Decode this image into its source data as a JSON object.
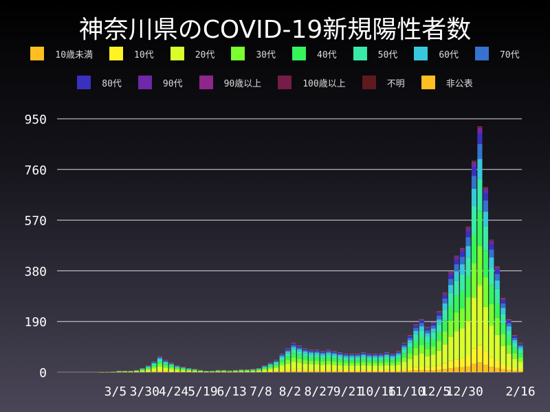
{
  "chart_data": {
    "type": "bar",
    "stacked": true,
    "title": "神奈川県のCOVID-19新規陽性者数",
    "xlabel": "",
    "ylabel": "",
    "ylim": [
      0,
      1000
    ],
    "yticks": [
      0,
      190,
      380,
      570,
      760,
      950
    ],
    "xtick_labels": [
      "3/5",
      "3/30",
      "4/24",
      "5/19",
      "6/13",
      "7/8",
      "8/2",
      "8/27",
      "9/21",
      "10/16",
      "11/10",
      "12/5",
      "12/30",
      "2/16"
    ],
    "xtick_dates": [
      "2020-03-05",
      "2020-03-30",
      "2020-04-24",
      "2020-05-19",
      "2020-06-13",
      "2020-07-08",
      "2020-08-02",
      "2020-08-27",
      "2020-09-21",
      "2020-10-16",
      "2020-11-10",
      "2020-12-05",
      "2020-12-30",
      "2021-02-16"
    ],
    "x_range": [
      "2020-01-16",
      "2021-02-16"
    ],
    "grid": true,
    "legend_placement": "top",
    "series": [
      {
        "name": "10歳未満",
        "color": "#ffbf20",
        "share": 0.04
      },
      {
        "name": "10代",
        "color": "#fff225",
        "share": 0.07
      },
      {
        "name": "20代",
        "color": "#d8ff2a",
        "share": 0.24
      },
      {
        "name": "30代",
        "color": "#7aff30",
        "share": 0.16
      },
      {
        "name": "40代",
        "color": "#36f55a",
        "share": 0.14
      },
      {
        "name": "50代",
        "color": "#38eaa6",
        "share": 0.13
      },
      {
        "name": "60代",
        "color": "#38c8dc",
        "share": 0.08
      },
      {
        "name": "70代",
        "color": "#3672cf",
        "share": 0.06
      },
      {
        "name": "80代",
        "color": "#3a30c0",
        "share": 0.04
      },
      {
        "name": "90代",
        "color": "#6e28a8",
        "share": 0.02
      },
      {
        "name": "90歳以上",
        "color": "#8e268c",
        "share": 0.005
      },
      {
        "name": "100歳以上",
        "color": "#761c48",
        "share": 0.002
      },
      {
        "name": "不明",
        "color": "#5e1a1e",
        "share": 0.002
      },
      {
        "name": "非公表",
        "color": "#ffbf20",
        "share": 0.001
      }
    ],
    "dates": [
      "2020-01-16",
      "2020-01-21",
      "2020-01-26",
      "2020-01-31",
      "2020-02-05",
      "2020-02-10",
      "2020-02-15",
      "2020-02-20",
      "2020-02-25",
      "2020-03-01",
      "2020-03-06",
      "2020-03-11",
      "2020-03-16",
      "2020-03-21",
      "2020-03-26",
      "2020-03-31",
      "2020-04-05",
      "2020-04-10",
      "2020-04-15",
      "2020-04-20",
      "2020-04-25",
      "2020-04-30",
      "2020-05-05",
      "2020-05-10",
      "2020-05-15",
      "2020-05-20",
      "2020-05-25",
      "2020-05-30",
      "2020-06-04",
      "2020-06-09",
      "2020-06-14",
      "2020-06-19",
      "2020-06-24",
      "2020-06-29",
      "2020-07-04",
      "2020-07-09",
      "2020-07-14",
      "2020-07-19",
      "2020-07-24",
      "2020-07-29",
      "2020-08-03",
      "2020-08-08",
      "2020-08-13",
      "2020-08-18",
      "2020-08-23",
      "2020-08-28",
      "2020-09-02",
      "2020-09-07",
      "2020-09-12",
      "2020-09-17",
      "2020-09-22",
      "2020-09-27",
      "2020-10-02",
      "2020-10-07",
      "2020-10-12",
      "2020-10-17",
      "2020-10-22",
      "2020-10-27",
      "2020-11-01",
      "2020-11-06",
      "2020-11-11",
      "2020-11-16",
      "2020-11-21",
      "2020-11-26",
      "2020-12-01",
      "2020-12-06",
      "2020-12-11",
      "2020-12-16",
      "2020-12-21",
      "2020-12-26",
      "2020-12-31",
      "2021-01-05",
      "2021-01-10",
      "2021-01-15",
      "2021-01-20",
      "2021-01-25",
      "2021-01-30",
      "2021-02-04",
      "2021-02-09",
      "2021-02-14"
    ],
    "totals": [
      0,
      0,
      0,
      0,
      0,
      0,
      0,
      1,
      1,
      2,
      5,
      5,
      5,
      8,
      15,
      25,
      40,
      60,
      45,
      35,
      25,
      20,
      15,
      12,
      8,
      5,
      5,
      8,
      8,
      6,
      8,
      10,
      10,
      12,
      15,
      25,
      35,
      45,
      70,
      90,
      110,
      100,
      90,
      85,
      85,
      80,
      85,
      80,
      75,
      70,
      70,
      70,
      75,
      70,
      70,
      70,
      75,
      70,
      80,
      110,
      140,
      180,
      200,
      170,
      190,
      230,
      300,
      380,
      440,
      470,
      550,
      800,
      930,
      700,
      500,
      400,
      280,
      200,
      140,
      110
    ]
  }
}
